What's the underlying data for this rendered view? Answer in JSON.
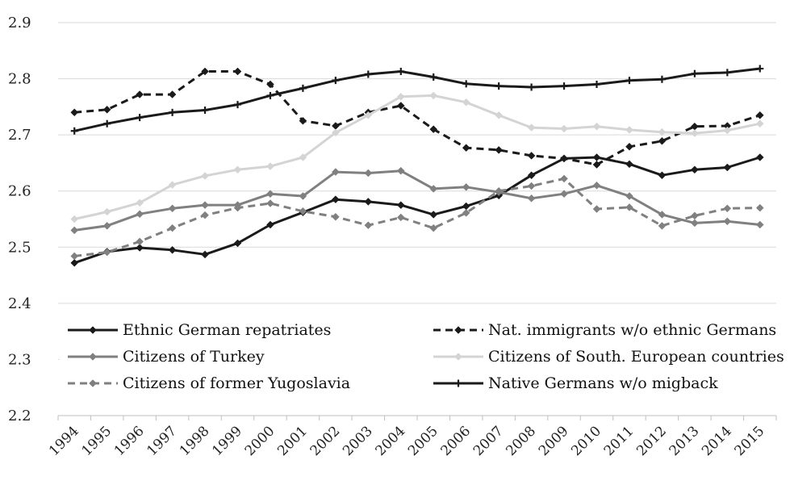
{
  "chart_data": {
    "type": "line",
    "title": "",
    "xlabel": "",
    "ylabel": "",
    "ylim": [
      2.2,
      2.9
    ],
    "y_ticks": [
      "2.2",
      "2.3",
      "2.4",
      "2.5",
      "2.6",
      "2.7",
      "2.8",
      "2.9"
    ],
    "grid": "horizontal",
    "legend_position": "inside-bottom",
    "categories": [
      "1994",
      "1995",
      "1996",
      "1997",
      "1998",
      "1999",
      "2000",
      "2001",
      "2002",
      "2003",
      "2004",
      "2005",
      "2006",
      "2007",
      "2008",
      "2009",
      "2010",
      "2011",
      "2012",
      "2013",
      "2014",
      "2015"
    ],
    "series": [
      {
        "name": "Ethnic German repatriates",
        "color": "#1a1a1a",
        "dash": "solid",
        "marker": "diamond",
        "values": [
          2.472,
          2.492,
          2.499,
          2.495,
          2.487,
          2.507,
          2.54,
          2.562,
          2.585,
          2.581,
          2.575,
          2.558,
          2.573,
          2.592,
          2.628,
          2.658,
          2.66,
          2.648,
          2.628,
          2.638,
          2.642,
          2.66
        ]
      },
      {
        "name": "Nat. immigrants w/o ethnic Germans",
        "color": "#1a1a1a",
        "dash": "dashed",
        "marker": "diamond",
        "values": [
          2.74,
          2.745,
          2.772,
          2.772,
          2.813,
          2.813,
          2.79,
          2.725,
          2.716,
          2.74,
          2.752,
          2.71,
          2.677,
          2.673,
          2.663,
          2.658,
          2.647,
          2.679,
          2.689,
          2.715,
          2.716,
          2.735
        ]
      },
      {
        "name": "Citizens of Turkey",
        "color": "#808080",
        "dash": "solid",
        "marker": "diamond",
        "values": [
          2.53,
          2.538,
          2.559,
          2.569,
          2.575,
          2.575,
          2.595,
          2.591,
          2.634,
          2.632,
          2.636,
          2.604,
          2.607,
          2.598,
          2.587,
          2.595,
          2.61,
          2.591,
          2.558,
          2.543,
          2.546,
          2.54
        ]
      },
      {
        "name": "Citizens of South. European countries",
        "color": "#d4d4d4",
        "dash": "solid",
        "marker": "diamond",
        "values": [
          2.55,
          2.563,
          2.579,
          2.611,
          2.627,
          2.638,
          2.644,
          2.66,
          2.704,
          2.735,
          2.768,
          2.77,
          2.758,
          2.735,
          2.713,
          2.711,
          2.715,
          2.709,
          2.705,
          2.703,
          2.708,
          2.72
        ]
      },
      {
        "name": "Citizens of former Yugoslavia",
        "color": "#808080",
        "dash": "dashed",
        "marker": "diamond",
        "values": [
          2.484,
          2.491,
          2.51,
          2.534,
          2.557,
          2.57,
          2.578,
          2.564,
          2.554,
          2.539,
          2.553,
          2.534,
          2.561,
          2.6,
          2.609,
          2.622,
          2.568,
          2.571,
          2.538,
          2.556,
          2.569,
          2.57
        ]
      },
      {
        "name": "Native Germans w/o migback",
        "color": "#1a1a1a",
        "dash": "solid",
        "marker": "plus",
        "values": [
          2.707,
          2.72,
          2.731,
          2.74,
          2.744,
          2.754,
          2.77,
          2.783,
          2.797,
          2.808,
          2.813,
          2.803,
          2.791,
          2.787,
          2.785,
          2.787,
          2.79,
          2.797,
          2.799,
          2.809,
          2.811,
          2.818
        ]
      }
    ]
  }
}
